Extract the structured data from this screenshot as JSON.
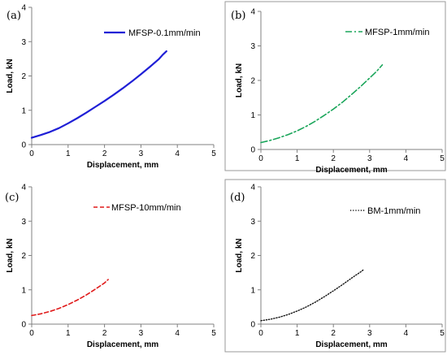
{
  "chart_data": [
    {
      "type": "line",
      "panel_label": "(a)",
      "xlabel": "Displacement, mm",
      "ylabel": "Load, kN",
      "xlim": [
        0,
        5
      ],
      "ylim": [
        0,
        4
      ],
      "xticks": [
        "0",
        "1",
        "2",
        "3",
        "4",
        "5"
      ],
      "yticks": [
        "0",
        "1",
        "2",
        "3",
        "4"
      ],
      "grid": false,
      "frame": false,
      "legend_position": "top-right",
      "series": [
        {
          "name": "MFSP-0.1mm/min",
          "color": "#1f1fd6",
          "style": "solid",
          "x": [
            0,
            0.25,
            0.5,
            0.75,
            1.0,
            1.25,
            1.5,
            1.75,
            2.0,
            2.25,
            2.5,
            2.75,
            3.0,
            3.25,
            3.5,
            3.6,
            3.7
          ],
          "y": [
            0.2,
            0.28,
            0.37,
            0.48,
            0.62,
            0.77,
            0.93,
            1.1,
            1.27,
            1.45,
            1.64,
            1.84,
            2.05,
            2.27,
            2.5,
            2.62,
            2.72
          ]
        }
      ]
    },
    {
      "type": "line",
      "panel_label": "(b)",
      "xlabel": "Displacement, mm",
      "ylabel": "Load, kN",
      "xlim": [
        0,
        5
      ],
      "ylim": [
        0,
        4
      ],
      "xticks": [
        "0",
        "1",
        "2",
        "3",
        "4",
        "5"
      ],
      "yticks": [
        "0",
        "1",
        "2",
        "3",
        "4"
      ],
      "grid": false,
      "frame": true,
      "legend_position": "top-right",
      "series": [
        {
          "name": "MFSP-1mm/min",
          "color": "#1aa55a",
          "style": "dash-dot",
          "x": [
            0,
            0.25,
            0.5,
            0.75,
            1.0,
            1.25,
            1.5,
            1.75,
            2.0,
            2.25,
            2.5,
            2.75,
            3.0,
            3.2,
            3.35
          ],
          "y": [
            0.2,
            0.26,
            0.34,
            0.43,
            0.54,
            0.67,
            0.82,
            0.99,
            1.17,
            1.37,
            1.59,
            1.82,
            2.07,
            2.27,
            2.45
          ]
        }
      ]
    },
    {
      "type": "line",
      "panel_label": "(c)",
      "xlabel": "Displacement, mm",
      "ylabel": "Load, kN",
      "xlim": [
        0,
        5
      ],
      "ylim": [
        0,
        4
      ],
      "xticks": [
        "0",
        "1",
        "2",
        "3",
        "4",
        "5"
      ],
      "yticks": [
        "0",
        "1",
        "2",
        "3",
        "4"
      ],
      "grid": false,
      "frame": false,
      "legend_position": "top-right",
      "series": [
        {
          "name": "MFSP-10mm/min",
          "color": "#e01a1a",
          "style": "dashed",
          "x": [
            0,
            0.25,
            0.5,
            0.75,
            1.0,
            1.25,
            1.5,
            1.75,
            2.0,
            2.1
          ],
          "y": [
            0.25,
            0.3,
            0.37,
            0.46,
            0.57,
            0.7,
            0.85,
            1.02,
            1.2,
            1.3
          ]
        }
      ]
    },
    {
      "type": "line",
      "panel_label": "(d)",
      "xlabel": "Displacement, mm",
      "ylabel": "Load, kN",
      "xlim": [
        0,
        5
      ],
      "ylim": [
        0,
        4
      ],
      "xticks": [
        "0",
        "1",
        "2",
        "3",
        "4",
        "5"
      ],
      "yticks": [
        "0",
        "1",
        "2",
        "3",
        "4"
      ],
      "grid": false,
      "frame": true,
      "legend_position": "top-right",
      "series": [
        {
          "name": "BM-1mm/min",
          "color": "#111111",
          "style": "dotted",
          "x": [
            0,
            0.25,
            0.5,
            0.75,
            1.0,
            1.25,
            1.5,
            1.75,
            2.0,
            2.25,
            2.5,
            2.75,
            2.85
          ],
          "y": [
            0.1,
            0.14,
            0.2,
            0.28,
            0.38,
            0.5,
            0.64,
            0.8,
            0.97,
            1.15,
            1.34,
            1.52,
            1.6
          ]
        }
      ]
    }
  ]
}
